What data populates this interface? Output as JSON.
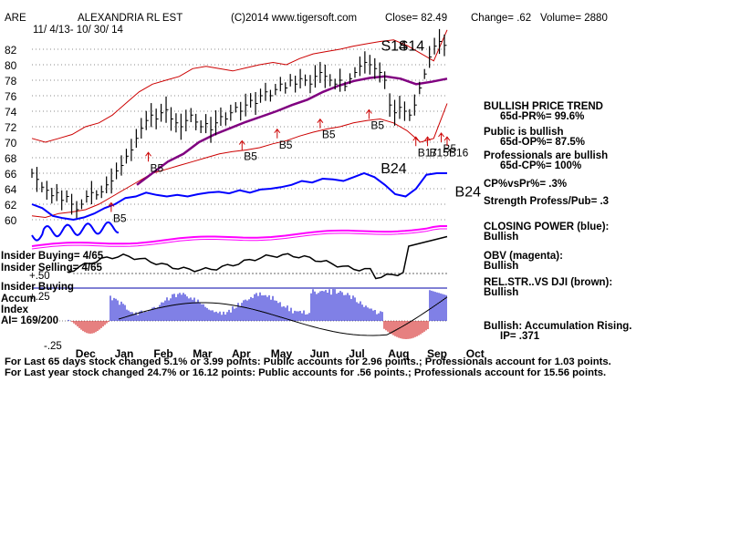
{
  "header": {
    "ticker": "ARE",
    "name": "ALEXANDRIA RL EST",
    "copyright": "(C)2014 www.tigersoft.com",
    "close": "Close=  82.49",
    "change": "Change= .62",
    "volume": "Volume= 2880",
    "date_range": "11/ 4/13- 10/ 30/ 14"
  },
  "indicators": [
    {
      "title": "BULLISH PRICE TREND",
      "value": "65d-PR%= 99.6%"
    },
    {
      "title": "Public is bullish",
      "value": "65d-OP%= 87.5%"
    },
    {
      "title": "Professionals are bullish",
      "value": "65d-CP%= 100%"
    },
    {
      "title": "CP%vsPr%=  .3%",
      "value": ""
    },
    {
      "title": "Strength Profess/Pub= .3",
      "value": ""
    },
    {
      "title": "CLOSING POWER (blue):",
      "value": "Bullish"
    },
    {
      "title": "OBV (magenta):",
      "value": "Bullish"
    },
    {
      "title": "REL.STR..VS DJI (brown):",
      "value": "Bullish"
    },
    {
      "title": "Bullish: Accumulation Rising.",
      "value": "IP=  .371"
    }
  ],
  "left_labels": {
    "insider_buying": "Insider Buying= 4/65",
    "insider_selling": "Insider Selling= 4/65",
    "plus50": "+.50",
    "insider_buying2": "Insider Buying",
    "accum": "Accum",
    "plus25": "+.25",
    "index": "Index",
    "ai": "AI= 169/200",
    "minus25": "-.25"
  },
  "footer": {
    "line1": "For Last 65 days stock changed  5.1% or  3.99 points:  Public accounts for  2.96 points.;  Professionals account for  1.03 points.",
    "line2": "For Last year stock changed  24.7% or  16.12 points:  Public accounts for  .56 points.;  Professionals account for  15.56 points."
  },
  "colors": {
    "price": "#000000",
    "bands": "#cc0000",
    "ma": "#800080",
    "closing_power": "#0000ff",
    "obv": "#ff00ff",
    "rel_strength": "#000000",
    "accum_pos": "#0000cc",
    "accum_neg": "#cc0000",
    "signal": "#cc0000"
  },
  "chart_data": {
    "type": "line",
    "ylim": [
      59,
      84
    ],
    "yticks": [
      60,
      62,
      64,
      66,
      68,
      70,
      72,
      74,
      76,
      78,
      80,
      82
    ],
    "months": [
      "Dec",
      "Jan",
      "Feb",
      "Mar",
      "Apr",
      "May",
      "Jun",
      "Jul",
      "Aug",
      "Sep",
      "Oct"
    ],
    "price_close": [
      66.0,
      65.2,
      64.2,
      63.8,
      63.1,
      63.5,
      62.5,
      63.0,
      62.0,
      61.3,
      62.0,
      63.0,
      63.5,
      63.2,
      63.6,
      64.5,
      65.0,
      66.3,
      67.0,
      68.2,
      69.0,
      70.5,
      71.8,
      72.8,
      73.5,
      73.0,
      73.8,
      74.2,
      73.0,
      72.5,
      72.0,
      72.8,
      73.5,
      72.6,
      72.0,
      72.4,
      71.6,
      72.5,
      73.3,
      73.0,
      73.8,
      74.5,
      74.0,
      74.8,
      75.4,
      75.0,
      76.0,
      76.5,
      76.0,
      76.8,
      77.5,
      77.0,
      78.0,
      77.5,
      78.2,
      78.0,
      77.5,
      78.5,
      79.0,
      78.5,
      78.0,
      77.5,
      78.0,
      77.2,
      78.2,
      79.0,
      79.8,
      80.3,
      80.0,
      79.5,
      79.0,
      78.0,
      74.8,
      73.8,
      74.5,
      74.0,
      73.5,
      74.8,
      77.0,
      78.8,
      81.0,
      82.4,
      83.0,
      82.5
    ],
    "upper_band": [
      70.5,
      70.0,
      70.5,
      71.0,
      72.0,
      72.5,
      73.5,
      75.0,
      76.5,
      77.5,
      78.0,
      78.5,
      79.5,
      79.8,
      79.5,
      79.2,
      79.6,
      80.0,
      80.3,
      80.0,
      80.8,
      81.4,
      81.7,
      82.0,
      82.4,
      82.7,
      83.0,
      83.2,
      82.5,
      81.5,
      80.5,
      84.5
    ],
    "lower_band": [
      60.5,
      60.3,
      60.8,
      61.0,
      61.3,
      62.0,
      63.0,
      64.0,
      65.0,
      66.0,
      66.5,
      67.0,
      67.5,
      68.0,
      68.5,
      68.8,
      69.0,
      69.3,
      69.8,
      70.2,
      70.8,
      71.3,
      71.7,
      72.0,
      72.5,
      72.8,
      73.0,
      72.5,
      71.5,
      70.0,
      70.5,
      75.0
    ],
    "moving_avg": [
      64.5,
      66.0,
      67.5,
      68.5,
      70.0,
      71.0,
      71.8,
      72.6,
      73.3,
      74.0,
      74.8,
      75.5,
      76.5,
      77.3,
      77.9,
      78.3,
      78.5,
      78.2,
      77.5,
      77.8,
      78.2
    ],
    "closing_power": [
      62.0,
      61.5,
      60.5,
      60.2,
      60.0,
      60.3,
      60.8,
      61.5,
      62.0,
      62.8,
      63.0,
      63.5,
      63.2,
      63.0,
      63.2,
      63.0,
      63.3,
      63.5,
      63.6,
      63.4,
      63.8,
      63.5,
      63.9,
      64.0,
      64.2,
      64.5,
      65.0,
      64.8,
      65.3,
      65.2,
      65.0,
      65.5,
      66.0,
      65.5,
      64.5,
      63.3,
      63.0,
      64.0,
      65.8,
      66.0,
      66.0
    ],
    "signals": [
      {
        "label": "B5",
        "kind": "buy",
        "month": 1.1,
        "price": 61.0
      },
      {
        "label": "B5",
        "kind": "buy",
        "month": 2.05,
        "price": 67.5
      },
      {
        "label": "B5",
        "kind": "buy",
        "month": 4.45,
        "price": 69.0
      },
      {
        "label": "B5",
        "kind": "buy",
        "month": 5.35,
        "price": 70.5
      },
      {
        "label": "B5",
        "kind": "buy",
        "month": 6.45,
        "price": 71.8
      },
      {
        "label": "B5",
        "kind": "buy",
        "month": 7.7,
        "price": 73.0
      },
      {
        "label": "S14",
        "kind": "sell",
        "month": 8.1,
        "price": 81.8
      },
      {
        "label": "S14",
        "kind": "sell",
        "month": 8.55,
        "price": 81.8
      },
      {
        "label": "B17",
        "kind": "buy",
        "month": 8.9,
        "price": 69.5
      },
      {
        "label": "B15",
        "kind": "buy",
        "month": 9.2,
        "price": 69.5
      },
      {
        "label": "B5",
        "kind": "buy",
        "month": 9.55,
        "price": 70.0
      },
      {
        "label": "B16",
        "kind": "buy",
        "month": 9.7,
        "price": 69.5
      },
      {
        "label": "B24",
        "kind": "cp",
        "month": 8.0,
        "price": 66.0
      },
      {
        "label": "B24",
        "kind": "cp",
        "month": 9.9,
        "price": 63.0
      }
    ]
  }
}
